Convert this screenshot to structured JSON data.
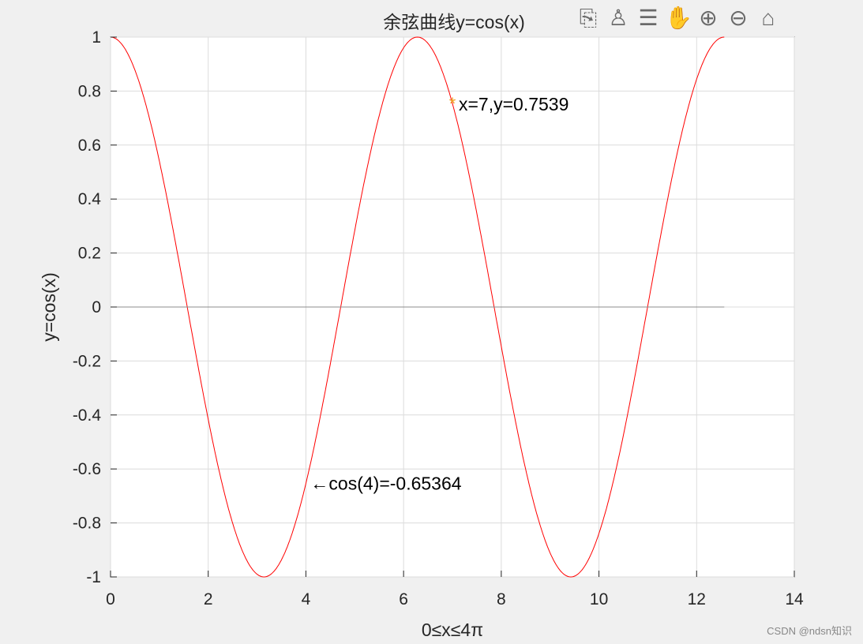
{
  "chart_data": {
    "type": "line",
    "title": "余弦曲线y=cos(x)",
    "xlabel": "0≤x≤4π",
    "ylabel": "y=cos(x)",
    "xlim": [
      0,
      14
    ],
    "ylim": [
      -1,
      1
    ],
    "xticks": [
      "0",
      "2",
      "4",
      "6",
      "8",
      "10",
      "12",
      "14"
    ],
    "yticks": [
      "-1",
      "-0.8",
      "-0.6",
      "-0.4",
      "-0.2",
      "0",
      "0.2",
      "0.4",
      "0.6",
      "0.8",
      "1"
    ],
    "grid": true,
    "series": [
      {
        "function": "cos(x)",
        "x_range": [
          0,
          12.566
        ],
        "color": "#ff0000"
      },
      {
        "function": "0",
        "x_range": [
          0,
          12.566
        ],
        "color": "#8c8c8c"
      }
    ],
    "marker": {
      "x": 7,
      "y": 0.7539,
      "symbol": "*",
      "color": "#f0a020"
    },
    "annotations": [
      {
        "text": "x=7,y=0.7539",
        "x": 7,
        "y": 0.7539
      },
      {
        "text": "←cos(4)=-0.65364",
        "x": 4,
        "y": -0.65364
      }
    ]
  },
  "toolbar": [
    "export-icon",
    "brush-icon",
    "datatip-icon",
    "pan-icon",
    "zoom-in-icon",
    "zoom-out-icon",
    "home-icon"
  ],
  "toolbar_glyphs": [
    "⎘",
    "♙",
    "☰",
    "✋",
    "⊕",
    "⊖",
    "⌂"
  ],
  "watermark": "CSDN @ndsn知识"
}
